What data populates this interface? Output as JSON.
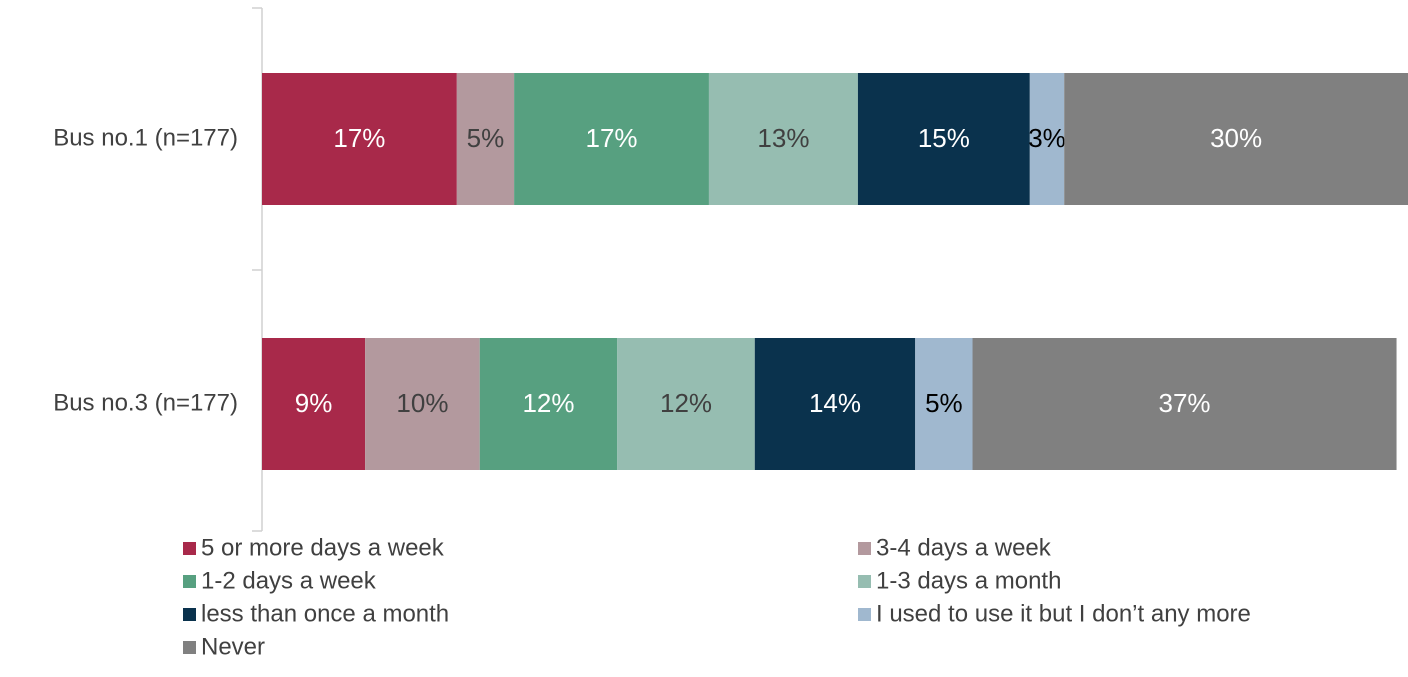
{
  "chart_data": {
    "type": "stacked_barh",
    "categories": [
      "Bus no.1 (n=177)",
      "Bus no.3 (n=177)"
    ],
    "xlim": [
      0,
      100
    ],
    "legend": "bottom",
    "series": [
      {
        "name": "5 or more days a week",
        "color": "#a8294a",
        "label_color": "#ffffff",
        "values": [
          17,
          9
        ],
        "value_labels": [
          "17%",
          "9%"
        ]
      },
      {
        "name": "3-4 days a week",
        "color": "#b3999e",
        "label_color": "#404040",
        "values": [
          5,
          10
        ],
        "value_labels": [
          "5%",
          "10%"
        ]
      },
      {
        "name": "1-2 days a week",
        "color": "#57a080",
        "label_color": "#ffffff",
        "values": [
          17,
          12
        ],
        "value_labels": [
          "17%",
          "12%"
        ]
      },
      {
        "name": "1-3 days a month",
        "color": "#96bdb1",
        "label_color": "#404040",
        "values": [
          13,
          12
        ],
        "value_labels": [
          "13%",
          "12%"
        ]
      },
      {
        "name": "less than once a month",
        "color": "#0a324d",
        "label_color": "#ffffff",
        "values": [
          15,
          14
        ],
        "value_labels": [
          "15%",
          "14%"
        ]
      },
      {
        "name": "I used to use it but I don’t any more",
        "color": "#a0b8cf",
        "label_color": "#000000",
        "values": [
          3,
          5
        ],
        "value_labels": [
          "3%",
          "5%"
        ]
      },
      {
        "name": "Never",
        "color": "#808080",
        "label_color": "#ffffff",
        "values": [
          30,
          37
        ],
        "value_labels": [
          "30%",
          "37%"
        ]
      }
    ]
  }
}
